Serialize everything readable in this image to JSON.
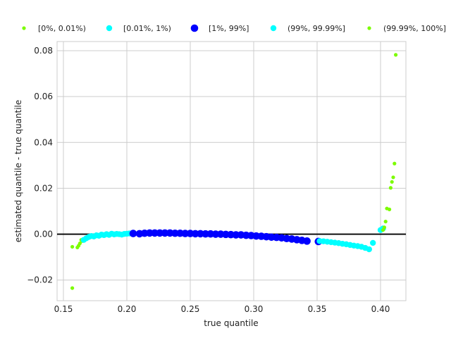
{
  "chart_data": {
    "type": "scatter",
    "title": "",
    "xlabel": "true quantile",
    "ylabel": "estimated quantile - true quantile",
    "xlim": [
      0.145,
      0.42
    ],
    "ylim": [
      -0.029,
      0.084
    ],
    "xticks": [
      0.15,
      0.2,
      0.25,
      0.3,
      0.35,
      0.4
    ],
    "yticks": [
      -0.02,
      0.0,
      0.02,
      0.04,
      0.06,
      0.08
    ],
    "xtick_labels": [
      "0.15",
      "0.20",
      "0.25",
      "0.30",
      "0.35",
      "0.40"
    ],
    "ytick_labels": [
      "−0.02",
      "0.00",
      "0.02",
      "0.04",
      "0.06",
      "0.08"
    ],
    "grid": true,
    "legend_position": "top",
    "reference_line": {
      "y": 0.0,
      "color": "#000000"
    },
    "series": [
      {
        "name": "[0%, 0.01%)",
        "color": "#7cfc00",
        "size": "small",
        "points": [
          [
            0.157,
            -0.0235
          ],
          [
            0.157,
            -0.0055
          ],
          [
            0.161,
            -0.0058
          ],
          [
            0.162,
            -0.005
          ],
          [
            0.163,
            -0.004
          ],
          [
            0.164,
            -0.0025
          ],
          [
            0.165,
            -0.003
          ]
        ]
      },
      {
        "name": "[0.01%, 1%)",
        "color": "#00ffff",
        "size": "medium",
        "points": [
          [
            0.166,
            -0.0025
          ],
          [
            0.168,
            -0.0018
          ],
          [
            0.17,
            -0.0012
          ],
          [
            0.172,
            -0.0008
          ],
          [
            0.174,
            -0.001
          ],
          [
            0.176,
            -0.0005
          ],
          [
            0.178,
            -0.0007
          ],
          [
            0.18,
            -0.0002
          ],
          [
            0.182,
            -0.0004
          ],
          [
            0.184,
            0.0
          ],
          [
            0.186,
            -0.0003
          ],
          [
            0.188,
            0.0002
          ],
          [
            0.19,
            -0.0001
          ],
          [
            0.192,
            0.0001
          ],
          [
            0.194,
            0.0
          ],
          [
            0.196,
            -0.0002
          ],
          [
            0.198,
            0.0001
          ],
          [
            0.2,
            0.0002
          ],
          [
            0.202,
            0.0003
          ],
          [
            0.204,
            0.0004
          ]
        ]
      },
      {
        "name": "[1%, 99%]",
        "color": "#0000ff",
        "size": "large",
        "points": [
          [
            0.205,
            0.0003
          ],
          [
            0.21,
            0.0002
          ],
          [
            0.214,
            0.0004
          ],
          [
            0.218,
            0.0005
          ],
          [
            0.222,
            0.0005
          ],
          [
            0.226,
            0.0005
          ],
          [
            0.23,
            0.0005
          ],
          [
            0.234,
            0.0005
          ],
          [
            0.238,
            0.0004
          ],
          [
            0.242,
            0.0004
          ],
          [
            0.246,
            0.0003
          ],
          [
            0.25,
            0.0003
          ],
          [
            0.254,
            0.0002
          ],
          [
            0.258,
            0.0002
          ],
          [
            0.262,
            0.0001
          ],
          [
            0.266,
            0.0001
          ],
          [
            0.27,
            0.0
          ],
          [
            0.274,
            0.0
          ],
          [
            0.278,
            -0.0001
          ],
          [
            0.282,
            -0.0002
          ],
          [
            0.286,
            -0.0003
          ],
          [
            0.29,
            -0.0003
          ],
          [
            0.294,
            -0.0005
          ],
          [
            0.298,
            -0.0006
          ],
          [
            0.302,
            -0.0008
          ],
          [
            0.306,
            -0.0009
          ],
          [
            0.31,
            -0.0011
          ],
          [
            0.314,
            -0.0013
          ],
          [
            0.318,
            -0.0014
          ],
          [
            0.322,
            -0.0016
          ],
          [
            0.326,
            -0.0019
          ],
          [
            0.33,
            -0.0021
          ],
          [
            0.334,
            -0.0024
          ],
          [
            0.338,
            -0.0027
          ],
          [
            0.342,
            -0.003
          ],
          [
            0.351,
            -0.0032
          ]
        ]
      },
      {
        "name": "(99%, 99.99%]",
        "color": "#00ffff",
        "size": "medium",
        "points": [
          [
            0.352,
            -0.003
          ],
          [
            0.355,
            -0.0031
          ],
          [
            0.358,
            -0.0033
          ],
          [
            0.361,
            -0.0035
          ],
          [
            0.364,
            -0.0037
          ],
          [
            0.367,
            -0.0039
          ],
          [
            0.37,
            -0.0042
          ],
          [
            0.373,
            -0.0044
          ],
          [
            0.376,
            -0.0047
          ],
          [
            0.379,
            -0.005
          ],
          [
            0.382,
            -0.0052
          ],
          [
            0.385,
            -0.0055
          ],
          [
            0.388,
            -0.006
          ],
          [
            0.391,
            -0.0066
          ],
          [
            0.394,
            -0.0038
          ],
          [
            0.4,
            0.0018
          ],
          [
            0.402,
            0.0025
          ]
        ]
      },
      {
        "name": "(99.99%, 100%]",
        "color": "#7cfc00",
        "size": "small",
        "points": [
          [
            0.402,
            0.0018
          ],
          [
            0.403,
            0.003
          ],
          [
            0.404,
            0.0055
          ],
          [
            0.405,
            0.0112
          ],
          [
            0.407,
            0.0108
          ],
          [
            0.408,
            0.0202
          ],
          [
            0.409,
            0.0228
          ],
          [
            0.41,
            0.0248
          ],
          [
            0.411,
            0.0308
          ],
          [
            0.412,
            0.0782
          ]
        ]
      }
    ]
  }
}
